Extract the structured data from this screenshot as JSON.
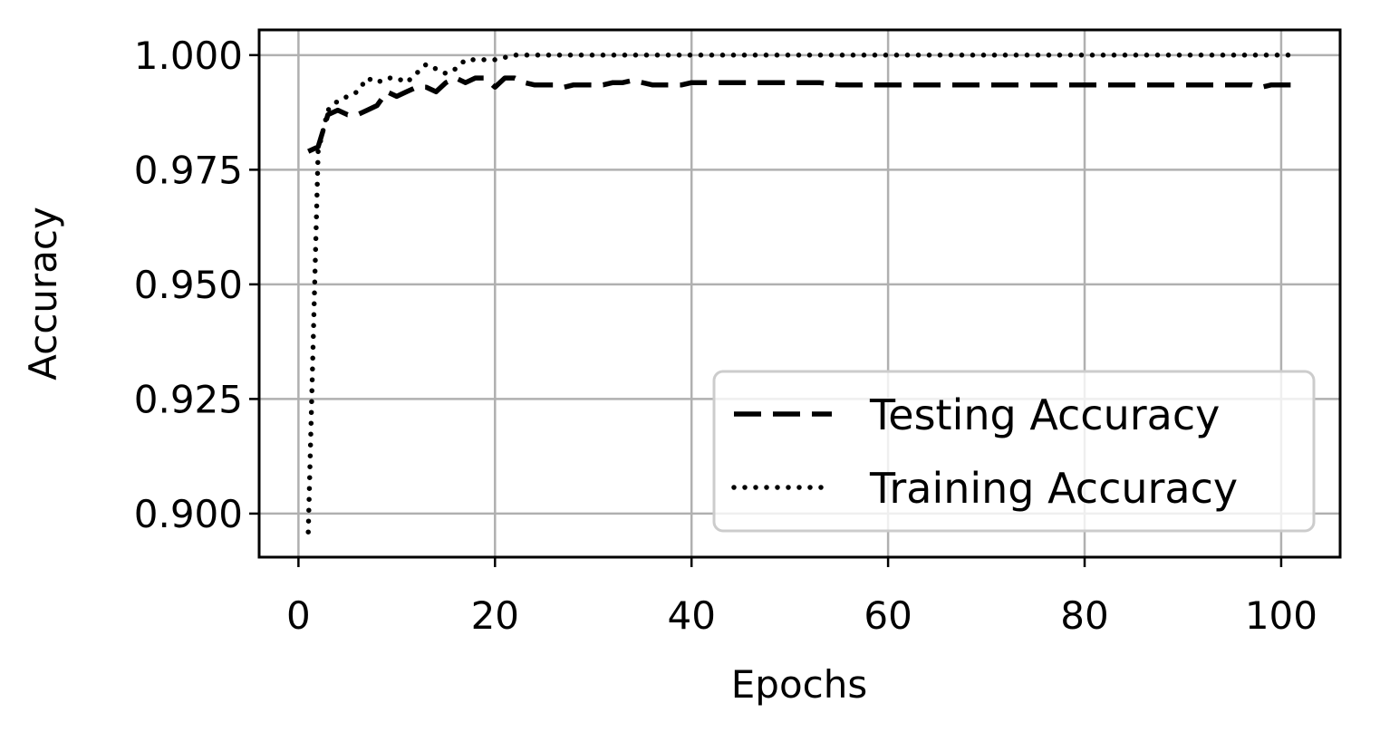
{
  "chart_data": {
    "type": "line",
    "title": "",
    "xlabel": "Epochs",
    "ylabel": "Accuracy",
    "xlim": [
      -4,
      106
    ],
    "ylim": [
      0.8905,
      1.0055
    ],
    "xticks": [
      0,
      20,
      40,
      60,
      80,
      100
    ],
    "xtick_labels": [
      "0",
      "20",
      "40",
      "60",
      "80",
      "100"
    ],
    "yticks": [
      0.9,
      0.925,
      0.95,
      0.975,
      1.0
    ],
    "ytick_labels": [
      "0.900",
      "0.925",
      "0.950",
      "0.975",
      "1.000"
    ],
    "grid": true,
    "legend_position": "lower right",
    "series": [
      {
        "name": "Testing Accuracy",
        "style": "dashed",
        "color": "#000000",
        "points": [
          [
            1,
            0.979
          ],
          [
            2,
            0.98
          ],
          [
            3,
            0.987
          ],
          [
            4,
            0.988
          ],
          [
            5,
            0.987
          ],
          [
            6,
            0.987
          ],
          [
            7,
            0.988
          ],
          [
            8,
            0.989
          ],
          [
            9,
            0.992
          ],
          [
            10,
            0.991
          ],
          [
            11,
            0.992
          ],
          [
            12,
            0.993
          ],
          [
            13,
            0.993
          ],
          [
            14,
            0.992
          ],
          [
            15,
            0.994
          ],
          [
            16,
            0.995
          ],
          [
            17,
            0.994
          ],
          [
            18,
            0.995
          ],
          [
            19,
            0.995
          ],
          [
            20,
            0.993
          ],
          [
            21,
            0.995
          ],
          [
            22,
            0.995
          ],
          [
            23,
            0.994
          ],
          [
            24,
            0.9935
          ],
          [
            25,
            0.9935
          ],
          [
            26,
            0.9935
          ],
          [
            27,
            0.993
          ],
          [
            28,
            0.9935
          ],
          [
            29,
            0.9935
          ],
          [
            30,
            0.9935
          ],
          [
            31,
            0.9935
          ],
          [
            32,
            0.994
          ],
          [
            33,
            0.994
          ],
          [
            34,
            0.9945
          ],
          [
            35,
            0.994
          ],
          [
            36,
            0.9935
          ],
          [
            37,
            0.9935
          ],
          [
            38,
            0.9935
          ],
          [
            39,
            0.9935
          ],
          [
            40,
            0.994
          ],
          [
            45,
            0.994
          ],
          [
            50,
            0.994
          ],
          [
            53,
            0.994
          ],
          [
            55,
            0.9935
          ],
          [
            60,
            0.9935
          ],
          [
            70,
            0.9935
          ],
          [
            80,
            0.9935
          ],
          [
            90,
            0.9935
          ],
          [
            97,
            0.9935
          ],
          [
            98,
            0.993
          ],
          [
            99,
            0.9935
          ],
          [
            101,
            0.9935
          ]
        ]
      },
      {
        "name": "Training Accuracy",
        "style": "dotted",
        "color": "#000000",
        "points": [
          [
            1,
            0.896
          ],
          [
            2,
            0.979
          ],
          [
            3,
            0.988
          ],
          [
            4,
            0.99
          ],
          [
            5,
            0.991
          ],
          [
            6,
            0.992
          ],
          [
            7,
            0.995
          ],
          [
            8,
            0.994
          ],
          [
            9,
            0.995
          ],
          [
            10,
            0.995
          ],
          [
            11,
            0.994
          ],
          [
            12,
            0.996
          ],
          [
            13,
            0.998
          ],
          [
            14,
            0.997
          ],
          [
            15,
            0.996
          ],
          [
            16,
            0.997
          ],
          [
            17,
            0.999
          ],
          [
            18,
            0.999
          ],
          [
            19,
            0.999
          ],
          [
            20,
            0.999
          ],
          [
            21,
            0.9995
          ],
          [
            22,
            1.0
          ],
          [
            30,
            1.0
          ],
          [
            40,
            1.0
          ],
          [
            50,
            1.0
          ],
          [
            60,
            1.0
          ],
          [
            70,
            1.0
          ],
          [
            80,
            1.0
          ],
          [
            90,
            1.0
          ],
          [
            101,
            1.0
          ]
        ]
      }
    ]
  }
}
